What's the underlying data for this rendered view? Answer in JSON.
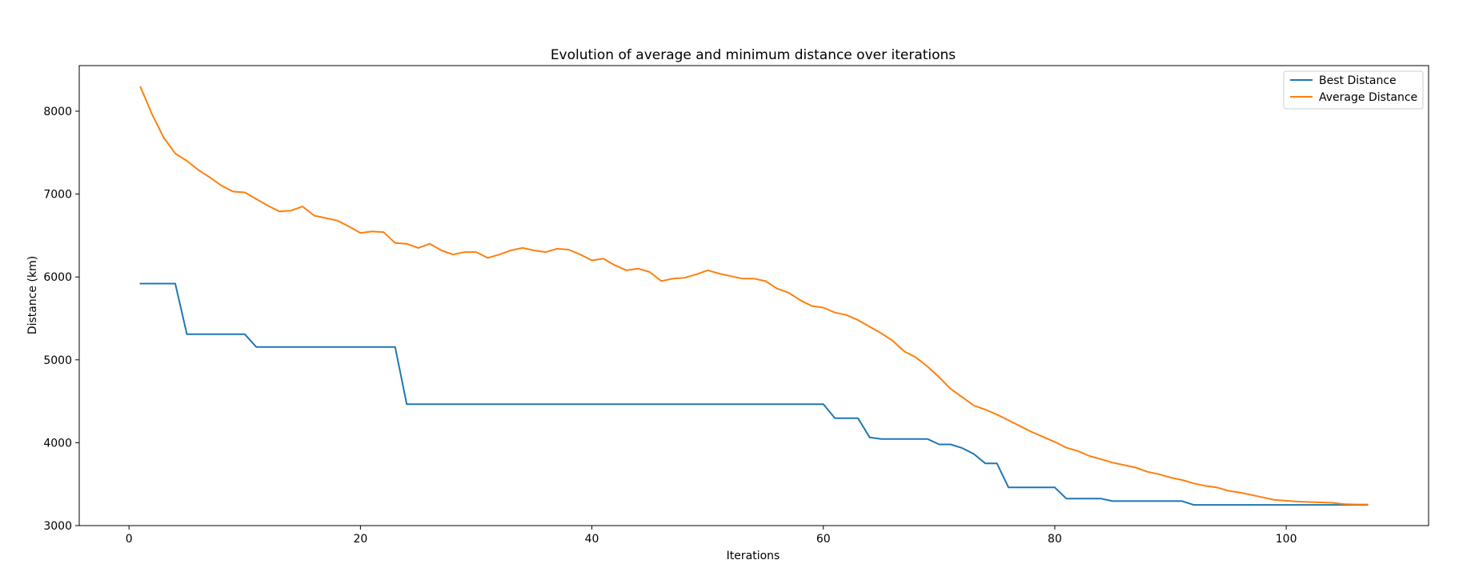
{
  "chart_data": {
    "type": "line",
    "title": "Evolution of average and minimum distance over iterations",
    "xlabel": "Iterations",
    "ylabel": "Distance (km)",
    "xlim": [
      -4.3,
      112.3
    ],
    "ylim": [
      3000,
      8550
    ],
    "xticks": [
      0,
      20,
      40,
      60,
      80,
      100
    ],
    "yticks": [
      3000,
      4000,
      5000,
      6000,
      7000,
      8000
    ],
    "grid": false,
    "legend_position": "top-right",
    "series": [
      {
        "name": "Best Distance",
        "color": "#1f77b4",
        "x": [
          1,
          2,
          3,
          4,
          5,
          6,
          7,
          8,
          9,
          10,
          11,
          12,
          13,
          14,
          15,
          16,
          17,
          18,
          19,
          20,
          21,
          22,
          23,
          24,
          25,
          26,
          27,
          28,
          29,
          30,
          31,
          32,
          33,
          34,
          35,
          36,
          37,
          38,
          39,
          40,
          41,
          42,
          43,
          44,
          45,
          46,
          47,
          48,
          49,
          50,
          51,
          52,
          53,
          54,
          55,
          56,
          57,
          58,
          59,
          60,
          61,
          62,
          63,
          64,
          65,
          66,
          67,
          68,
          69,
          70,
          71,
          72,
          73,
          74,
          75,
          76,
          77,
          78,
          79,
          80,
          81,
          82,
          83,
          84,
          85,
          86,
          87,
          88,
          89,
          90,
          91,
          92,
          93,
          94,
          95,
          96,
          97,
          98,
          99,
          100,
          101,
          102,
          103,
          104,
          105,
          106,
          107
        ],
        "y": [
          5920,
          5920,
          5920,
          5920,
          5310,
          5310,
          5310,
          5310,
          5310,
          5310,
          5155,
          5155,
          5155,
          5155,
          5155,
          5155,
          5155,
          5155,
          5155,
          5155,
          5155,
          5155,
          5155,
          4465,
          4465,
          4465,
          4465,
          4465,
          4465,
          4465,
          4465,
          4465,
          4465,
          4465,
          4465,
          4465,
          4465,
          4465,
          4465,
          4465,
          4465,
          4465,
          4465,
          4465,
          4465,
          4465,
          4465,
          4465,
          4465,
          4465,
          4465,
          4465,
          4465,
          4465,
          4465,
          4465,
          4465,
          4465,
          4465,
          4465,
          4295,
          4295,
          4295,
          4065,
          4045,
          4045,
          4045,
          4045,
          4045,
          3980,
          3980,
          3935,
          3865,
          3750,
          3750,
          3460,
          3460,
          3460,
          3460,
          3460,
          3325,
          3325,
          3325,
          3325,
          3295,
          3295,
          3295,
          3295,
          3295,
          3295,
          3295,
          3250,
          3250,
          3250,
          3250,
          3250,
          3250,
          3250,
          3250,
          3250,
          3250,
          3250,
          3250,
          3250,
          3250,
          3250,
          3250
        ]
      },
      {
        "name": "Average Distance",
        "color": "#ff7f0e",
        "x": [
          1,
          2,
          3,
          4,
          5,
          6,
          7,
          8,
          9,
          10,
          11,
          12,
          13,
          14,
          15,
          16,
          17,
          18,
          19,
          20,
          21,
          22,
          23,
          24,
          25,
          26,
          27,
          28,
          29,
          30,
          31,
          32,
          33,
          34,
          35,
          36,
          37,
          38,
          39,
          40,
          41,
          42,
          43,
          44,
          45,
          46,
          47,
          48,
          49,
          50,
          51,
          52,
          53,
          54,
          55,
          56,
          57,
          58,
          59,
          60,
          61,
          62,
          63,
          64,
          65,
          66,
          67,
          68,
          69,
          70,
          71,
          72,
          73,
          74,
          75,
          76,
          77,
          78,
          79,
          80,
          81,
          82,
          83,
          84,
          85,
          86,
          87,
          88,
          89,
          90,
          91,
          92,
          93,
          94,
          95,
          96,
          97,
          98,
          99,
          100,
          101,
          102,
          103,
          104,
          105,
          106,
          107
        ],
        "y": [
          8290,
          7960,
          7680,
          7490,
          7400,
          7290,
          7200,
          7100,
          7030,
          7020,
          6940,
          6860,
          6790,
          6800,
          6850,
          6740,
          6710,
          6680,
          6610,
          6530,
          6550,
          6540,
          6410,
          6400,
          6350,
          6400,
          6320,
          6270,
          6300,
          6300,
          6230,
          6270,
          6320,
          6350,
          6320,
          6300,
          6340,
          6330,
          6270,
          6200,
          6220,
          6140,
          6080,
          6100,
          6060,
          5950,
          5980,
          5990,
          6030,
          6080,
          6040,
          6010,
          5980,
          5980,
          5950,
          5860,
          5810,
          5720,
          5650,
          5630,
          5570,
          5540,
          5480,
          5400,
          5320,
          5230,
          5100,
          5030,
          4920,
          4790,
          4650,
          4550,
          4450,
          4400,
          4340,
          4270,
          4200,
          4130,
          4070,
          4010,
          3940,
          3900,
          3840,
          3800,
          3760,
          3730,
          3700,
          3650,
          3620,
          3580,
          3550,
          3510,
          3480,
          3460,
          3420,
          3400,
          3370,
          3340,
          3310,
          3300,
          3290,
          3285,
          3280,
          3275,
          3260,
          3255,
          3255
        ]
      }
    ]
  }
}
